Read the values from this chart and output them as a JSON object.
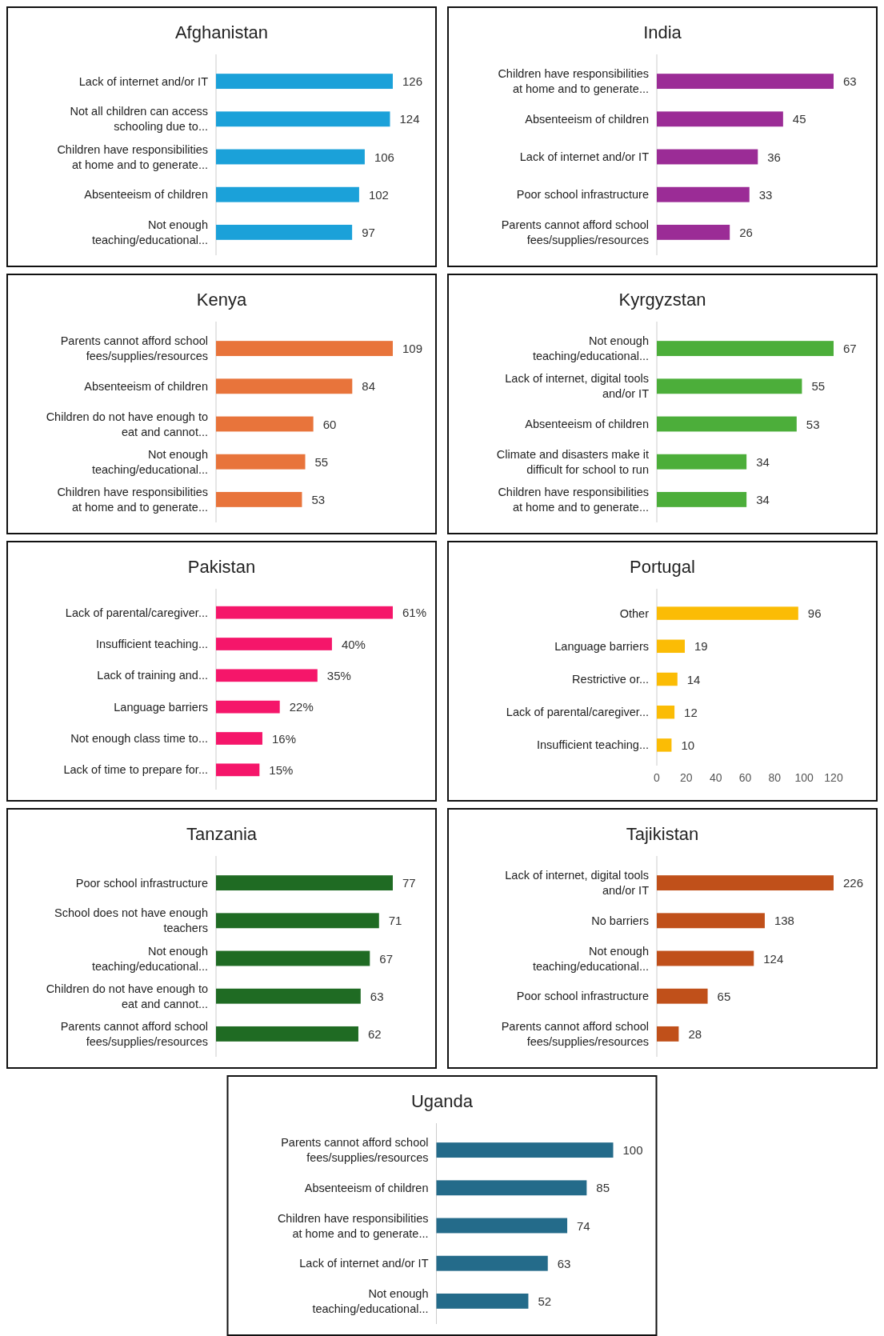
{
  "chart_data": [
    {
      "type": "bar",
      "orientation": "horizontal",
      "title": "Afghanistan",
      "categories": [
        "Lack of internet and/or IT",
        "Not all children can access schooling due to...",
        "Children have  responsibilities at home and to generate...",
        "Absenteeism of children",
        "Not enough teaching/educational..."
      ],
      "values": [
        126,
        124,
        106,
        102,
        97
      ],
      "color": "#1ba1d9",
      "data_labels": true
    },
    {
      "type": "bar",
      "orientation": "horizontal",
      "title": "India",
      "categories": [
        "Children have  responsibilities at home and to generate...",
        "Absenteeism of children",
        "Lack of internet and/or IT",
        "Poor school infrastructure",
        "Parents cannot afford school fees/supplies/resources"
      ],
      "values": [
        63,
        45,
        36,
        33,
        26
      ],
      "color": "#9b2c96",
      "data_labels": true
    },
    {
      "type": "bar",
      "orientation": "horizontal",
      "title": "Kenya",
      "categories": [
        "Parents cannot afford school fees/supplies/resources",
        "Absenteeism of children",
        "Children do not have enough to eat and cannot...",
        "Not enough teaching/educational...",
        "Children have  responsibilities at home and to generate..."
      ],
      "values": [
        109,
        84,
        60,
        55,
        53
      ],
      "color": "#e8743b",
      "data_labels": true
    },
    {
      "type": "bar",
      "orientation": "horizontal",
      "title": "Kyrgyzstan",
      "categories": [
        "Not enough teaching/educational...",
        "Lack of internet, digital tools and/or IT",
        "Absenteeism of children",
        "Climate and disasters make it difficult for school to run",
        "Children have  responsibilities at home and to generate..."
      ],
      "values": [
        67,
        55,
        53,
        34,
        34
      ],
      "color": "#4cae3a",
      "data_labels": true
    },
    {
      "type": "bar",
      "orientation": "horizontal",
      "title": "Pakistan",
      "categories": [
        "Lack of parental/caregiver...",
        "Insufficient teaching...",
        "Lack of training and...",
        "Language barriers",
        "Not enough class time to...",
        "Lack of time to prepare for..."
      ],
      "values": [
        61,
        40,
        35,
        22,
        16,
        15
      ],
      "value_labels": [
        "61%",
        "40%",
        "35%",
        "22%",
        "16%",
        "15%"
      ],
      "color": "#f5166a"
    },
    {
      "type": "bar",
      "orientation": "horizontal",
      "title": "Portugal",
      "categories": [
        "Other",
        "Language barriers",
        "Restrictive or...",
        "Lack of parental/caregiver...",
        "Insufficient teaching..."
      ],
      "values": [
        96,
        19,
        14,
        12,
        10
      ],
      "color": "#fbbc05",
      "data_labels": true,
      "xlim": [
        0,
        120
      ],
      "xticks": [
        0,
        20,
        40,
        60,
        80,
        100,
        120
      ]
    },
    {
      "type": "bar",
      "orientation": "horizontal",
      "title": "Tanzania",
      "categories": [
        "Poor school infrastructure",
        "School does not have enough teachers",
        "Not enough teaching/educational...",
        "Children do not have enough to eat and cannot...",
        "Parents cannot afford school fees/supplies/resources"
      ],
      "values": [
        77,
        71,
        67,
        63,
        62
      ],
      "color": "#1f6b23",
      "data_labels": true
    },
    {
      "type": "bar",
      "orientation": "horizontal",
      "title": "Tajikistan",
      "categories": [
        "Lack of internet, digital tools and/or IT",
        "No barriers",
        "Not enough teaching/educational...",
        "Poor school infrastructure",
        "Parents cannot afford school fees/supplies/resources"
      ],
      "values": [
        226,
        138,
        124,
        65,
        28
      ],
      "color": "#c0501a",
      "data_labels": true
    },
    {
      "type": "bar",
      "orientation": "horizontal",
      "title": "Uganda",
      "categories": [
        "Parents cannot afford school fees/supplies/resources",
        "Absenteeism of children",
        "Children have  responsibilities at home and to generate...",
        "Lack of internet and/or IT",
        "Not enough teaching/educational..."
      ],
      "values": [
        100,
        85,
        74,
        63,
        52
      ],
      "color": "#246b8a",
      "data_labels": true
    }
  ]
}
